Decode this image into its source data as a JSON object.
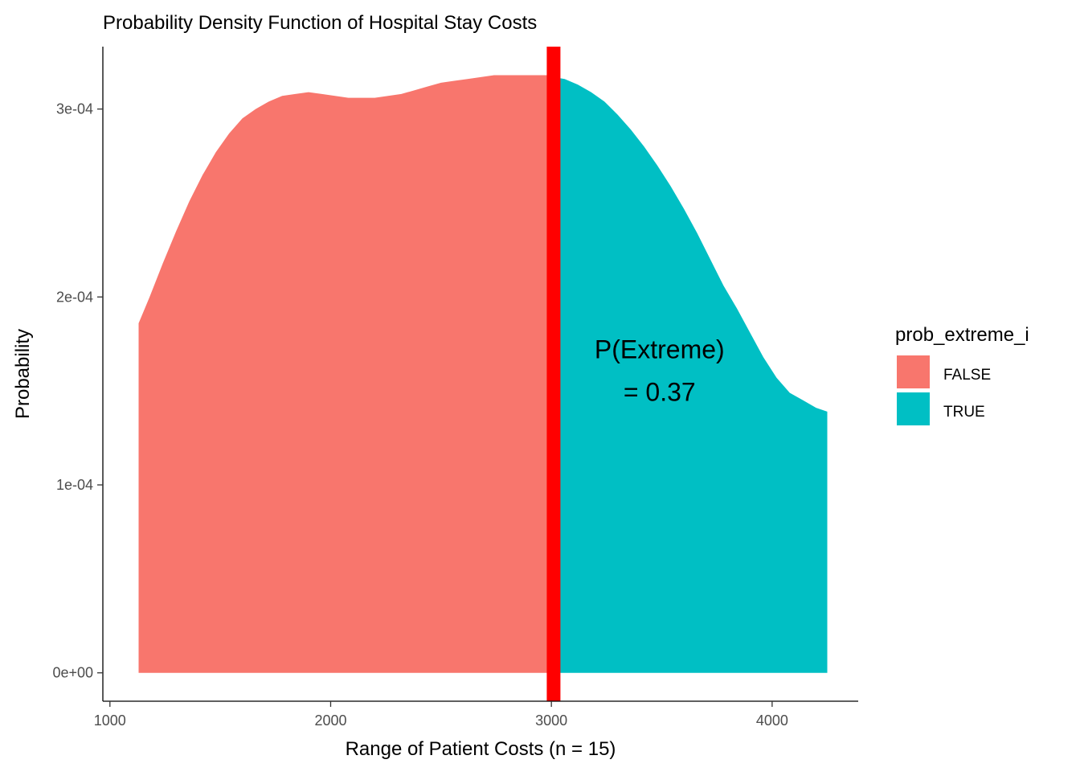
{
  "chart_data": {
    "type": "area",
    "title": "Probability Density Function of Hospital Stay Costs",
    "xlabel": "Range of Patient Costs (n = 15)",
    "ylabel": "Probability",
    "xlim": [
      968,
      4390
    ],
    "ylim": [
      -1.51e-05,
      0.0003332
    ],
    "x_ticks": [
      1000,
      2000,
      3000,
      4000
    ],
    "x_tick_labels": [
      "1000",
      "2000",
      "3000",
      "4000"
    ],
    "y_ticks": [
      0,
      0.0001,
      0.0002,
      0.0003
    ],
    "y_tick_labels": [
      "0e+00",
      "1e-04",
      "2e-04",
      "3e-04"
    ],
    "threshold": 3010,
    "threshold_color": "#ff0000",
    "series": [
      {
        "name": "FALSE",
        "color": "#F8766D",
        "x": [
          1130,
          1180,
          1240,
          1300,
          1360,
          1420,
          1480,
          1540,
          1600,
          1660,
          1720,
          1780,
          1840,
          1900,
          1960,
          2020,
          2080,
          2140,
          2200,
          2260,
          2320,
          2380,
          2440,
          2500,
          2560,
          2620,
          2680,
          2740,
          2800,
          2860,
          2920,
          2980,
          3010
        ],
        "values": [
          0.000186,
          0.0002,
          0.000218,
          0.000235,
          0.000251,
          0.000265,
          0.000277,
          0.000287,
          0.000295,
          0.0003,
          0.000304,
          0.000307,
          0.000308,
          0.000309,
          0.000308,
          0.000307,
          0.000306,
          0.000306,
          0.000306,
          0.000307,
          0.000308,
          0.00031,
          0.000312,
          0.000314,
          0.000315,
          0.000316,
          0.000317,
          0.000318,
          0.000318,
          0.000318,
          0.000318,
          0.000318,
          0.000317
        ]
      },
      {
        "name": "TRUE",
        "color": "#00BFC4",
        "x": [
          3010,
          3060,
          3120,
          3180,
          3240,
          3300,
          3360,
          3420,
          3480,
          3540,
          3600,
          3660,
          3720,
          3780,
          3840,
          3900,
          3960,
          4020,
          4080,
          4140,
          4200,
          4250
        ],
        "values": [
          0.000317,
          0.000316,
          0.000313,
          0.000309,
          0.000304,
          0.000297,
          0.000289,
          0.00028,
          0.00027,
          0.000259,
          0.000247,
          0.000234,
          0.00022,
          0.000206,
          0.000194,
          0.000181,
          0.000168,
          0.000157,
          0.000149,
          0.000145,
          0.000141,
          0.000139
        ]
      }
    ],
    "annotation": {
      "line1": "P(Extreme)",
      "line2": "= 0.37",
      "x": 3490,
      "y": 0.000161
    },
    "legend": {
      "title": "prob_extreme_i",
      "position": "right"
    },
    "grid": false
  }
}
